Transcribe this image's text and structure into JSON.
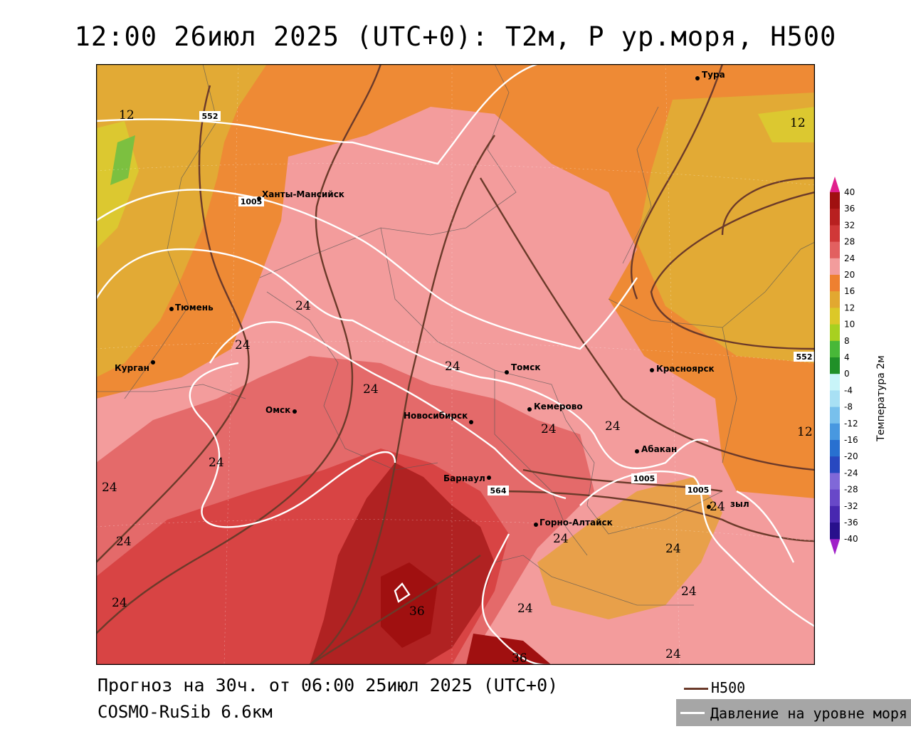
{
  "title": "12:00 26июл 2025 (UTC+0): T2м, P ур.моря, H500",
  "footer": {
    "forecast": "Прогноз на 30ч. от 06:00 25июл 2025 (UTC+0)",
    "model": "COSMO-RuSib 6.6км"
  },
  "legend": {
    "h500": "H500",
    "pressure": "Давление на уровне моря",
    "h500_color": "#6b3a2a",
    "pressure_color": "#ffffff"
  },
  "colorbar": {
    "title": "Температура 2м",
    "labels": [
      "40",
      "36",
      "32",
      "28",
      "24",
      "20",
      "16",
      "12",
      "10",
      "8",
      "4",
      "0",
      "-4",
      "-8",
      "-12",
      "-16",
      "-20",
      "-24",
      "-28",
      "-32",
      "-36",
      "-40"
    ],
    "colors": [
      "#a01010",
      "#b82020",
      "#d03838",
      "#e26060",
      "#f29c9c",
      "#ee8030",
      "#e2a830",
      "#dcc828",
      "#a8d020",
      "#48b838",
      "#209028",
      "#c8f4f8",
      "#a8e0f4",
      "#78c0ec",
      "#4898e0",
      "#2870d0",
      "#2848c0",
      "#8068d8",
      "#6848c8",
      "#4828b0",
      "#28108c"
    ],
    "tip_top_color": "#e0208c",
    "tip_bottom_color": "#a020c8"
  },
  "cities": [
    {
      "name": "Тура"
    },
    {
      "name": "Ханты-Мансийск"
    },
    {
      "name": "Тюмень"
    },
    {
      "name": "Курган"
    },
    {
      "name": "Омск"
    },
    {
      "name": "Томск"
    },
    {
      "name": "Красноярск"
    },
    {
      "name": "Кемерово"
    },
    {
      "name": "Новосибирск"
    },
    {
      "name": "Абакан"
    },
    {
      "name": "Барнаул"
    },
    {
      "name": "Горно-Алтайск"
    },
    {
      "name": "зыл"
    }
  ],
  "isotherm_labels": [
    "12",
    "12",
    "12",
    "24",
    "24",
    "24",
    "24",
    "24",
    "24",
    "24",
    "24",
    "24",
    "24",
    "24",
    "24",
    "24",
    "24",
    "24",
    "36",
    "36"
  ],
  "contour_labels": [
    "552",
    "1005",
    "552",
    "1005",
    "1005",
    "564"
  ]
}
